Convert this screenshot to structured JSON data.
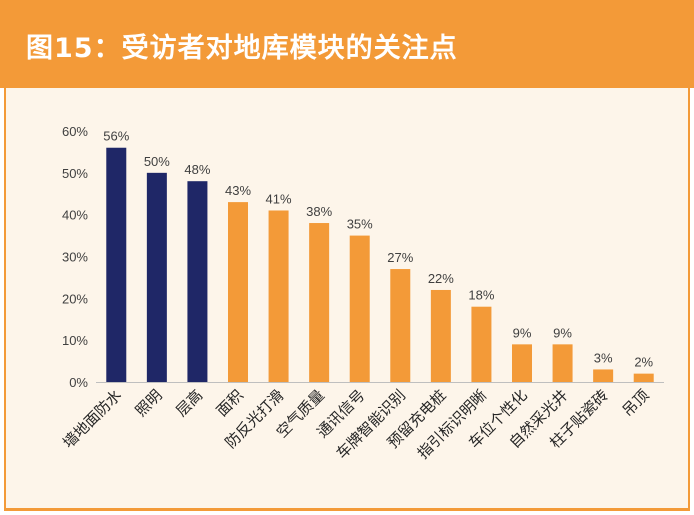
{
  "header": {
    "title": "图15：受访者对地库模块的关注点"
  },
  "colors": {
    "accent": "#F39A38",
    "highlight": "#1F2767",
    "panel": "#FDF5EA"
  },
  "chart_data": {
    "type": "bar",
    "title": "",
    "xlabel": "",
    "ylabel": "",
    "ylim": [
      0,
      60
    ],
    "yticks": [
      "0%",
      "10%",
      "20%",
      "30%",
      "40%",
      "50%",
      "60%"
    ],
    "categories": [
      "墙地面防水",
      "照明",
      "层高",
      "面积",
      "防反光打滑",
      "空气质量",
      "通讯信号",
      "车牌智能识别",
      "预留充电桩",
      "指引标识明晰",
      "车位个性化",
      "自然采光井",
      "柱子贴瓷砖",
      "吊顶"
    ],
    "values": [
      56,
      50,
      48,
      43,
      41,
      38,
      35,
      27,
      22,
      18,
      9,
      9,
      3,
      2
    ],
    "value_labels": [
      "56%",
      "50%",
      "48%",
      "43%",
      "41%",
      "38%",
      "35%",
      "27%",
      "22%",
      "18%",
      "9%",
      "9%",
      "3%",
      "2%"
    ],
    "highlighted_count": 3,
    "grid": false,
    "legend": "none"
  }
}
